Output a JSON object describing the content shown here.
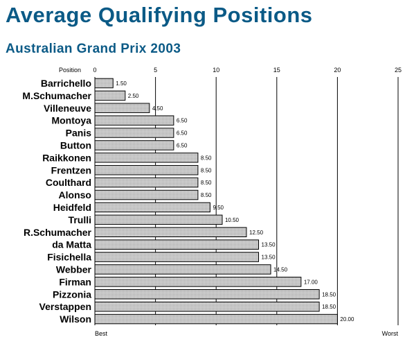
{
  "title": "Average Qualifying Positions",
  "subtitle": "Australian Grand Prix 2003",
  "chart_data": {
    "type": "bar",
    "orientation": "horizontal",
    "axis_label": "Position",
    "xlim": [
      0,
      25
    ],
    "ticks": [
      0,
      5,
      10,
      15,
      20,
      25
    ],
    "tick_labels": [
      "0",
      "5",
      "10",
      "15",
      "20",
      "25"
    ],
    "min_label": "Best",
    "max_label": "Worst",
    "grid": "vertical lines at major ticks",
    "categories": [
      "Barrichello",
      "M.Schumacher",
      "Villeneuve",
      "Montoya",
      "Panis",
      "Button",
      "Raikkonen",
      "Frentzen",
      "Coulthard",
      "Alonso",
      "Heidfeld",
      "Trulli",
      "R.Schumacher",
      "da Matta",
      "Fisichella",
      "Webber",
      "Firman",
      "Pizzonia",
      "Verstappen",
      "Wilson"
    ],
    "values": [
      1.5,
      2.5,
      4.5,
      6.5,
      6.5,
      6.5,
      8.5,
      8.5,
      8.5,
      8.5,
      9.5,
      10.5,
      12.5,
      13.5,
      13.5,
      14.5,
      17.0,
      18.5,
      18.5,
      20.0
    ],
    "value_labels": [
      "1.50",
      "2.50",
      "4.50",
      "6.50",
      "6.50",
      "6.50",
      "8.50",
      "8.50",
      "8.50",
      "8.50",
      "9.50",
      "10.50",
      "12.50",
      "13.50",
      "13.50",
      "14.50",
      "17.00",
      "18.50",
      "18.50",
      "20.00"
    ],
    "colors": {
      "bar_fill": "#c8c8c8",
      "bar_stroke": "#000000",
      "title": "#0b5a86",
      "grid": "#000000"
    }
  }
}
